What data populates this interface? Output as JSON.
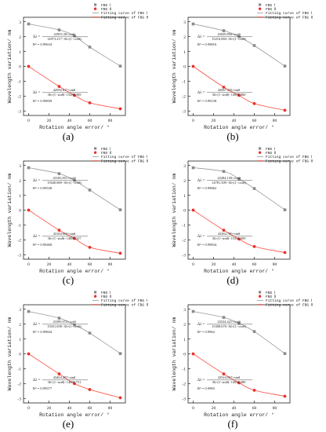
{
  "figure": {
    "panel_labels": [
      "(a)",
      "(b)",
      "(c)",
      "(d)",
      "(e)",
      "(f)"
    ]
  },
  "colors": {
    "fbg1": "#8a8a8a",
    "fbg2": "#e8312a",
    "curve1": "#9a9a9a",
    "curve2": "#ff4a3d",
    "axis": "#222222"
  },
  "chart_data": [
    {
      "type": "scatter",
      "panel": "(a)",
      "xlabel": "Rotation angle error/ °",
      "ylabel": "Wavelength variation/ nm",
      "xlim": [
        -5,
        95
      ],
      "ylim": [
        -3.3,
        3.3
      ],
      "xticks": [
        0,
        20,
        40,
        60,
        80
      ],
      "yticks": [
        -3,
        -2,
        -1,
        0,
        1,
        2,
        3
      ],
      "legend": [
        "FBG Ⅰ",
        "FBG Ⅱ",
        "Fitting curve of FBG Ⅰ",
        "Fitting curve of FBG Ⅱ"
      ],
      "legend_position": "top-right",
      "series": [
        {
          "name": "FBG Ⅰ",
          "x": [
            0,
            30,
            45,
            60,
            90
          ],
          "y": [
            2.85,
            2.45,
            2.05,
            1.3,
            0.02
          ]
        },
        {
          "name": "FBG Ⅱ",
          "x": [
            0,
            30,
            45,
            60,
            90
          ],
          "y": [
            0.0,
            -1.35,
            -1.95,
            -2.45,
            -2.85
          ]
        }
      ],
      "annotations": {
        "eq1_num": "42955.38×cosθ",
        "eq1_den": "14973.217−36×(1−cosθ)",
        "r1": "R² = 0.99634",
        "eq2_num": "42950.817×sinθ",
        "eq2_den": "36×(1−sinθ)−15289.569",
        "r2": "R² = 0.99839"
      }
    },
    {
      "type": "scatter",
      "panel": "(b)",
      "xlabel": "Rotation angle error/ °",
      "ylabel": "Wavelength variation/ nm",
      "xlim": [
        -5,
        95
      ],
      "ylim": [
        -3.3,
        3.3
      ],
      "xticks": [
        0,
        20,
        40,
        60,
        80
      ],
      "yticks": [
        -3,
        -2,
        -1,
        0,
        1,
        2,
        3
      ],
      "legend": [
        "FBG Ⅰ",
        "FBG Ⅱ",
        "Fitting curve of FBG Ⅰ",
        "Fitting curve of FBG Ⅱ"
      ],
      "legend_position": "top-right",
      "series": [
        {
          "name": "FBG Ⅰ",
          "x": [
            0,
            30,
            45,
            60,
            90
          ],
          "y": [
            2.85,
            2.4,
            2.0,
            1.4,
            0.02
          ]
        },
        {
          "name": "FBG Ⅱ",
          "x": [
            0,
            30,
            45,
            60,
            90
          ],
          "y": [
            0.0,
            -1.4,
            -1.95,
            -2.5,
            -2.95
          ]
        }
      ],
      "annotations": {
        "eq1_num": "43039.894×cosθ",
        "eq1_den": "15216.084−36×(1−cosθ)",
        "r1": "R² = 0.99816",
        "eq2_num": "43067.335×sinθ",
        "eq2_den": "36×(1−sinθ)−14987.860",
        "r2": "R² = 0.99158"
      }
    },
    {
      "type": "scatter",
      "panel": "(c)",
      "xlabel": "Rotation angle error/ °",
      "ylabel": "Wavelength variation/ nm",
      "xlim": [
        -5,
        95
      ],
      "ylim": [
        -3.3,
        3.3
      ],
      "xticks": [
        0,
        20,
        40,
        60,
        80
      ],
      "yticks": [
        -3,
        -2,
        -1,
        0,
        1,
        2,
        3
      ],
      "legend": [
        "FBG Ⅰ",
        "FBG Ⅱ",
        "Fitting curve of FBG Ⅰ",
        "Fitting curve of FBG Ⅱ"
      ],
      "legend_position": "top-right",
      "series": [
        {
          "name": "FBG Ⅰ",
          "x": [
            0,
            30,
            45,
            60,
            90
          ],
          "y": [
            2.85,
            2.45,
            2.0,
            1.35,
            0.02
          ]
        },
        {
          "name": "FBG Ⅱ",
          "x": [
            0,
            30,
            45,
            60,
            90
          ],
          "y": [
            0.0,
            -1.35,
            -1.9,
            -2.5,
            -2.9
          ]
        }
      ],
      "annotations": {
        "eq1_num": "43183.851×cosθ",
        "eq1_den": "15040.869−36×(1−cosθ)",
        "r1": "R² = 0.99538",
        "eq2_num": "43184.064×sinθ",
        "eq2_den": "36×(1−sinθ)−14888.227",
        "r2": "R² = 0.99468"
      }
    },
    {
      "type": "scatter",
      "panel": "(d)",
      "xlabel": "Rotation angle error/ °",
      "ylabel": "Wavelength variation/ nm",
      "xlim": [
        -5,
        95
      ],
      "ylim": [
        -3.3,
        3.3
      ],
      "xticks": [
        0,
        20,
        40,
        60,
        80
      ],
      "yticks": [
        -3,
        -2,
        -1,
        0,
        1,
        2,
        3
      ],
      "legend": [
        "FBG Ⅰ",
        "FBG Ⅱ",
        "Fitting curve of FBG Ⅰ",
        "Fitting curve of FBG Ⅱ"
      ],
      "legend_position": "top-right",
      "series": [
        {
          "name": "FBG Ⅰ",
          "x": [
            0,
            30,
            45,
            60,
            90
          ],
          "y": [
            2.85,
            2.6,
            2.1,
            1.45,
            0.02
          ]
        },
        {
          "name": "FBG Ⅱ",
          "x": [
            0,
            30,
            45,
            60,
            90
          ],
          "y": [
            0.0,
            -1.35,
            -1.95,
            -2.45,
            -2.85
          ]
        }
      ],
      "annotations": {
        "eq1_num": "43284.150×cosθ",
        "eq1_den": "14781.309−36×(1−cosθ)",
        "r1": "R² = 0.99862",
        "eq2_num": "43284.780×sinθ",
        "eq2_den": "36×(1−sinθ)−15301.609",
        "r2": "R² = 0.99834"
      }
    },
    {
      "type": "scatter",
      "panel": "(e)",
      "xlabel": "Rotation angle error/ °",
      "ylabel": "Wavelength variation/ nm",
      "xlim": [
        -5,
        95
      ],
      "ylim": [
        -3.3,
        3.3
      ],
      "xticks": [
        0,
        20,
        40,
        60,
        80
      ],
      "yticks": [
        -3,
        -2,
        -1,
        0,
        1,
        2,
        3
      ],
      "legend": [
        "FBG Ⅰ",
        "FBG Ⅱ",
        "Fitting curve of FBG Ⅰ",
        "Fitting curve of FBG Ⅱ"
      ],
      "legend_position": "top-right",
      "series": [
        {
          "name": "FBG Ⅰ",
          "x": [
            0,
            30,
            45,
            60,
            90
          ],
          "y": [
            2.85,
            2.4,
            1.95,
            1.4,
            0.02
          ]
        },
        {
          "name": "FBG Ⅱ",
          "x": [
            0,
            30,
            45,
            60,
            90
          ],
          "y": [
            0.0,
            -1.35,
            -2.0,
            -2.4,
            -2.95
          ]
        }
      ],
      "annotations": {
        "eq1_num": "43399.072×cosθ",
        "eq1_den": "15031.658−36×(1−cosθ)",
        "r1": "R² = 0.99844",
        "eq2_num": "43404.407×sinθ",
        "eq2_den": "36×(1−sinθ)−14609.731",
        "r2": "R² = 0.99577"
      }
    },
    {
      "type": "scatter",
      "panel": "(f)",
      "xlabel": "Rotation angle error/ °",
      "ylabel": "Wavelength variation/ nm",
      "xlim": [
        -5,
        95
      ],
      "ylim": [
        -3.3,
        3.3
      ],
      "xticks": [
        0,
        20,
        40,
        60,
        80
      ],
      "yticks": [
        -3,
        -2,
        -1,
        0,
        1,
        2,
        3
      ],
      "legend": [
        "FBG Ⅰ",
        "FBG Ⅱ",
        "Fitting curve of FBG Ⅰ",
        "Fitting curve of FBG Ⅱ"
      ],
      "legend_position": "top-right",
      "series": [
        {
          "name": "FBG Ⅰ",
          "x": [
            0,
            30,
            45,
            60,
            90
          ],
          "y": [
            2.85,
            2.45,
            2.05,
            1.5,
            0.02
          ]
        },
        {
          "name": "FBG Ⅱ",
          "x": [
            0,
            30,
            45,
            60,
            90
          ],
          "y": [
            0.0,
            -1.35,
            -1.95,
            -2.45,
            -2.85
          ]
        }
      ],
      "annotations": {
        "eq1_num": "43524.421×cosθ",
        "eq1_den": "15308.676−36×(1−cosθ)",
        "r1": "R² = 0.9962",
        "eq2_num": "43524.927×sinθ",
        "eq2_den": "36×(1−sinθ)−14921.489",
        "r2": "R² = 0.9983"
      }
    }
  ]
}
